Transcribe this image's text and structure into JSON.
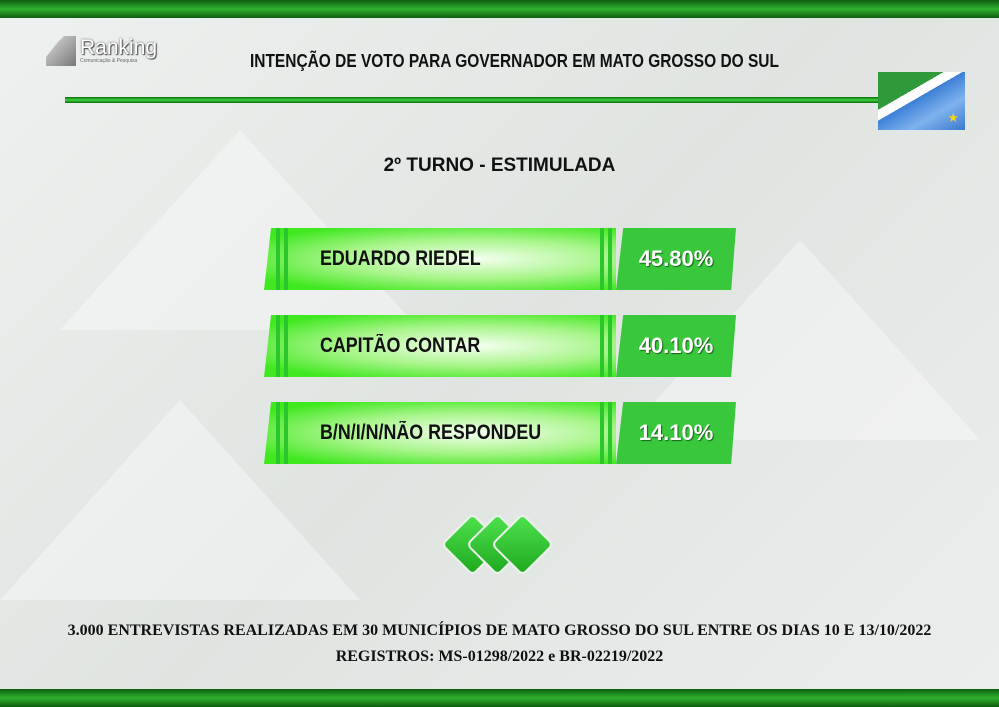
{
  "logo": {
    "name": "Ranking",
    "tagline": "Comunicação & Pesquisa"
  },
  "header": {
    "title": "INTENÇÃO DE VOTO PARA GOVERNADOR EM MATO GROSSO DO SUL"
  },
  "flag": {
    "name": "Mato Grosso do Sul flag",
    "colors": [
      "#2e9a3a",
      "#ffffff",
      "#3c7fd6",
      "#f2d21a"
    ]
  },
  "subtitle": "2º TURNO - ESTIMULADA",
  "chart_data": {
    "type": "bar",
    "title": "2º TURNO - ESTIMULADA",
    "categories": [
      "EDUARDO RIEDEL",
      "CAPITÃO CONTAR",
      "B/N/I/N/NÃO RESPONDEU"
    ],
    "values": [
      45.8,
      40.1,
      14.1
    ],
    "labels": [
      "45.80%",
      "40.10%",
      "14.10%"
    ],
    "unit": "%",
    "colors": {
      "bar": "#3fe81f",
      "value_box": "#39c83b"
    }
  },
  "footer": {
    "line1": "3.000 ENTREVISTAS REALIZADAS EM 30 MUNICÍPIOS DE MATO GROSSO DO SUL ENTRE OS DIAS 10 E 13/10/2022",
    "line2": "REGISTROS: MS-01298/2022 e BR-02219/2022"
  }
}
